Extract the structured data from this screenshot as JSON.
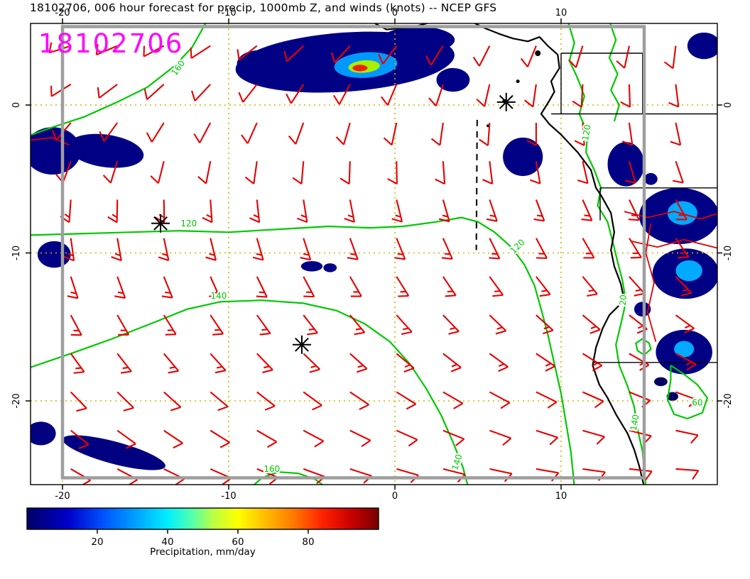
{
  "title": "18102706, 006 hour forecast for precip, 1000mb Z, and winds (knots) -- NCEP GFS",
  "overlay_label": {
    "text": "18102706",
    "color": "#ff00ff"
  },
  "map": {
    "lon_ticks": [
      -20,
      -10,
      0,
      10
    ],
    "lat_ticks": [
      0,
      -10,
      -20
    ],
    "grid_color": "#d4b400",
    "inner_frame": {
      "lon": [
        -20,
        15
      ],
      "lat": [
        5.3,
        -25.2
      ],
      "color": "#9e9e9e"
    },
    "extent": {
      "lon": [
        -21.9,
        19.4
      ],
      "lat": [
        5.6,
        -25.8
      ]
    }
  },
  "wind": {
    "color": "#e60000",
    "lon_start": -19.5,
    "lon_step": 2.8,
    "lat_start": 4.0,
    "lat_step": -2.6,
    "row_speeds": [
      10,
      10,
      10,
      10,
      15,
      15,
      15,
      15,
      15,
      10,
      10,
      10
    ],
    "rows": [
      [
        252,
        247,
        242,
        237,
        232,
        227,
        222,
        217,
        212,
        207,
        202,
        197,
        192,
        187
      ],
      [
        238,
        233,
        228,
        223,
        218,
        213,
        208,
        203,
        198,
        193,
        188,
        183,
        178,
        173
      ],
      [
        220,
        216,
        212,
        208,
        204,
        200,
        196,
        192,
        188,
        184,
        180,
        176,
        172,
        168
      ],
      [
        200,
        197,
        194,
        191,
        188,
        185,
        182,
        179,
        176,
        173,
        170,
        167,
        164,
        161
      ],
      [
        184,
        181,
        179,
        176,
        174,
        171,
        169,
        166,
        164,
        161,
        159,
        156,
        154,
        151
      ],
      [
        172,
        170,
        168,
        166,
        164,
        162,
        160,
        158,
        156,
        154,
        152,
        150,
        148,
        146
      ],
      [
        162,
        160,
        158,
        156,
        154,
        152,
        150,
        148,
        146,
        144,
        142,
        140,
        138,
        136
      ],
      [
        152,
        150,
        148,
        146,
        144,
        142,
        140,
        138,
        136,
        134,
        132,
        130,
        128,
        126
      ],
      [
        144,
        142,
        140,
        138,
        136,
        134,
        132,
        130,
        128,
        126,
        124,
        122,
        120,
        118
      ],
      [
        136,
        134,
        132,
        130,
        128,
        126,
        124,
        122,
        120,
        118,
        116,
        114,
        112,
        110
      ],
      [
        128,
        126,
        124,
        122,
        120,
        118,
        116,
        114,
        112,
        110,
        108,
        106,
        104,
        102
      ],
      [
        120,
        118,
        116,
        114,
        112,
        110,
        108,
        106,
        104,
        102,
        100,
        98,
        96,
        94
      ]
    ]
  },
  "contours": {
    "color": "#00c800",
    "lines": [
      {
        "points": [
          [
            -11.3,
            5.7
          ],
          [
            -12.2,
            3.9
          ],
          [
            -13.3,
            2.6
          ],
          [
            -14.9,
            1.2
          ],
          [
            -16.7,
            0.2
          ],
          [
            -18.7,
            -0.8
          ],
          [
            -20.6,
            -1.5
          ],
          [
            -22.1,
            -2.1
          ]
        ],
        "labels": [
          {
            "t": "160",
            "p": [
              -12.9,
              2.4
            ],
            "r": -55
          }
        ]
      },
      {
        "points": [
          [
            -22.1,
            -8.8
          ],
          [
            -19,
            -8.7
          ],
          [
            -16,
            -8.6
          ],
          [
            -13,
            -8.5
          ],
          [
            -10,
            -8.6
          ],
          [
            -7,
            -8.4
          ],
          [
            -4,
            -8.2
          ],
          [
            -1.5,
            -8.3
          ],
          [
            0.5,
            -8.2
          ],
          [
            2.5,
            -7.9
          ],
          [
            4,
            -7.6
          ],
          [
            5,
            -7.9
          ],
          [
            6,
            -8.6
          ],
          [
            7,
            -9.6
          ],
          [
            7.8,
            -10.8
          ],
          [
            8.4,
            -12.2
          ],
          [
            8.8,
            -13.8
          ],
          [
            9.2,
            -15.5
          ],
          [
            9.6,
            -17.5
          ],
          [
            10,
            -19.5
          ],
          [
            10.3,
            -21.5
          ],
          [
            10.6,
            -23.5
          ],
          [
            10.8,
            -25.8
          ]
        ],
        "labels": [
          {
            "t": "120",
            "p": [
              -12.4,
              -8.2
            ],
            "r": 0
          },
          {
            "t": "120",
            "p": [
              7.5,
              -9.7
            ],
            "r": -45
          }
        ]
      },
      {
        "points": [
          [
            -22.1,
            -17.8
          ],
          [
            -19.5,
            -16.8
          ],
          [
            -17,
            -15.8
          ],
          [
            -14.5,
            -14.7
          ],
          [
            -12.5,
            -13.8
          ],
          [
            -10.5,
            -13.3
          ],
          [
            -8,
            -13.2
          ],
          [
            -5.5,
            -13.4
          ],
          [
            -3.5,
            -13.9
          ],
          [
            -1.8,
            -14.8
          ],
          [
            -0.3,
            -16
          ],
          [
            0.9,
            -17.5
          ],
          [
            1.9,
            -19.2
          ],
          [
            2.8,
            -21
          ],
          [
            3.5,
            -22.8
          ],
          [
            4.1,
            -24.5
          ],
          [
            4.4,
            -25.8
          ]
        ],
        "labels": [
          {
            "t": "140",
            "p": [
              -10.6,
              -13.1
            ],
            "r": 0
          },
          {
            "t": "140",
            "p": [
              3.9,
              -24.2
            ],
            "r": -72
          }
        ]
      },
      {
        "points": [
          [
            -8.6,
            -25.8
          ],
          [
            -8,
            -25.2
          ],
          [
            -7,
            -24.8
          ],
          [
            -5.8,
            -24.9
          ],
          [
            -4.8,
            -25.3
          ],
          [
            -4.2,
            -25.8
          ]
        ],
        "labels": [
          {
            "t": "160",
            "p": [
              -7.4,
              -24.8
            ],
            "r": 0
          }
        ]
      },
      {
        "points": [
          [
            10.4,
            5.7
          ],
          [
            10.8,
            4.2
          ],
          [
            10.5,
            3
          ],
          [
            11,
            1.8
          ],
          [
            11.4,
            0.6
          ],
          [
            11.1,
            -0.6
          ],
          [
            11.6,
            -1.9
          ],
          [
            11.5,
            -3.2
          ],
          [
            12,
            -4.4
          ],
          [
            12.4,
            -5.6
          ],
          [
            12.2,
            -6.8
          ],
          [
            12.8,
            -7.9
          ],
          [
            13.1,
            -9.2
          ],
          [
            13.4,
            -10.6
          ],
          [
            13.7,
            -11.9
          ],
          [
            13.9,
            -13.3
          ],
          [
            13.6,
            -14.8
          ],
          [
            13.3,
            -16.2
          ],
          [
            13.5,
            -17.6
          ],
          [
            14,
            -19
          ],
          [
            14.4,
            -20.4
          ],
          [
            14.6,
            -21.9
          ],
          [
            14.9,
            -23.4
          ],
          [
            15.1,
            -25.8
          ]
        ],
        "labels": [
          {
            "t": "120",
            "p": [
              11.7,
              -1.9
            ],
            "r": -80
          },
          {
            "t": "20",
            "p": [
              13.9,
              -13.2
            ],
            "r": -85
          },
          {
            "t": "140",
            "p": [
              14.6,
              -21.5
            ],
            "r": -80
          }
        ]
      },
      {
        "points": [
          [
            12.9,
            5.7
          ],
          [
            13.3,
            4.4
          ],
          [
            12.9,
            3.2
          ],
          [
            13.4,
            2.1
          ],
          [
            13,
            1
          ],
          [
            13.5,
            0
          ],
          [
            13.2,
            -1.1
          ]
        ],
        "labels": []
      },
      {
        "points": [
          [
            16.6,
            -17.6
          ],
          [
            17.4,
            -18.2
          ],
          [
            18.2,
            -18.9
          ],
          [
            18.8,
            -19.8
          ],
          [
            18.5,
            -20.8
          ],
          [
            17.6,
            -21.2
          ],
          [
            16.8,
            -20.9
          ],
          [
            16.4,
            -19.9
          ],
          [
            16.6,
            -18.6
          ],
          [
            16.6,
            -17.6
          ]
        ],
        "labels": [
          {
            "t": "60",
            "p": [
              18.2,
              -20.3
            ],
            "r": 0
          }
        ]
      },
      {
        "points": [
          [
            14.9,
            -15.8
          ],
          [
            15.3,
            -16.1
          ],
          [
            15.4,
            -16.5
          ],
          [
            15,
            -16.9
          ],
          [
            14.6,
            -16.6
          ],
          [
            14.5,
            -16.1
          ],
          [
            14.9,
            -15.8
          ]
        ],
        "labels": []
      }
    ],
    "red_lines": [
      [
        [
          -22.1,
          -2.4
        ],
        [
          -20.6,
          -2.2
        ],
        [
          -19.6,
          -2.7
        ]
      ],
      [
        [
          13.8,
          -7.2
        ],
        [
          15.2,
          -7.6
        ],
        [
          16.8,
          -7.2
        ],
        [
          18.4,
          -7.7
        ],
        [
          19.5,
          -7.3
        ]
      ],
      [
        [
          14.2,
          -9.2
        ],
        [
          15.8,
          -9.6
        ],
        [
          17.4,
          -9.1
        ],
        [
          19.5,
          -9.7
        ]
      ],
      [
        [
          15.4,
          -8
        ],
        [
          15.1,
          -10
        ],
        [
          15.6,
          -12
        ],
        [
          15.2,
          -14
        ],
        [
          15.7,
          -16
        ]
      ]
    ]
  },
  "coast": {
    "paths": [
      [
        [
          -1.5,
          5.7
        ],
        [
          -0.5,
          5.1
        ],
        [
          1.2,
          5.3
        ],
        [
          2.5,
          5.7
        ]
      ],
      [
        [
          4.5,
          5.7
        ],
        [
          5.4,
          5.2
        ],
        [
          6.3,
          4.8
        ],
        [
          7.1,
          4.5
        ],
        [
          8,
          4.3
        ],
        [
          8.7,
          4.6
        ],
        [
          9.2,
          4
        ],
        [
          9.8,
          3.4
        ],
        [
          9.9,
          2.5
        ],
        [
          9.4,
          1.6
        ],
        [
          9.6,
          0.9
        ],
        [
          9.3,
          0.3
        ],
        [
          8.8,
          -0.6
        ],
        [
          9.3,
          -1.3
        ],
        [
          10,
          -2
        ],
        [
          11,
          -3.2
        ],
        [
          11.8,
          -4.4
        ],
        [
          12.1,
          -5.6
        ],
        [
          12.4,
          -6.1
        ],
        [
          13,
          -7.3
        ],
        [
          13.2,
          -8.6
        ],
        [
          13,
          -9.8
        ],
        [
          13.2,
          -10.9
        ],
        [
          13.6,
          -12.1
        ],
        [
          13.8,
          -13.2
        ],
        [
          12.9,
          -14.2
        ],
        [
          12.5,
          -15.1
        ],
        [
          12.1,
          -16.4
        ],
        [
          11.9,
          -17.6
        ],
        [
          12.3,
          -18.9
        ],
        [
          12.8,
          -19.8
        ],
        [
          13.3,
          -20.9
        ],
        [
          14,
          -22.2
        ],
        [
          14.4,
          -23.3
        ],
        [
          14.7,
          -24.4
        ],
        [
          15,
          -25.8
        ]
      ]
    ],
    "islands": [
      [
        8.6,
        3.5,
        4
      ],
      [
        7.4,
        1.6,
        2.5
      ],
      [
        6.6,
        0.25,
        3
      ],
      [
        5.6,
        -1.4,
        2
      ]
    ],
    "borders": [
      [
        [
          10,
          3.5
        ],
        [
          14.9,
          3.5
        ]
      ],
      [
        [
          14.9,
          3.5
        ],
        [
          14.9,
          -0.6
        ]
      ],
      [
        [
          10,
          3.5
        ],
        [
          10,
          -0.6
        ]
      ],
      [
        [
          9.4,
          -0.6
        ],
        [
          19.4,
          -0.6
        ]
      ],
      [
        [
          12.35,
          -5.6
        ],
        [
          19.4,
          -5.6
        ]
      ],
      [
        [
          12.35,
          -5.6
        ],
        [
          12.35,
          -7.8
        ]
      ],
      [
        [
          11.9,
          -17.4
        ],
        [
          19.4,
          -17.4
        ]
      ]
    ]
  },
  "precip_blobs": [
    [
      -3.0,
      2.9,
      6.6,
      2.0,
      -4,
      "#000085"
    ],
    [
      -8.2,
      2.8,
      1.3,
      0.9,
      0,
      "#000085"
    ],
    [
      1.4,
      4.4,
      2.2,
      0.9,
      0,
      "#000085"
    ],
    [
      3.5,
      1.7,
      1.0,
      0.8,
      0,
      "#000085"
    ],
    [
      18.6,
      4.0,
      1.0,
      0.9,
      0,
      "#000085"
    ],
    [
      -20.6,
      -3.1,
      1.7,
      1.6,
      0,
      "#000085"
    ],
    [
      -17.4,
      -3.1,
      2.3,
      1.1,
      8,
      "#000085"
    ],
    [
      -20.5,
      -10.1,
      1.0,
      0.9,
      0,
      "#000085"
    ],
    [
      -5.0,
      -10.9,
      0.65,
      0.35,
      0,
      "#000085"
    ],
    [
      -3.9,
      -11.0,
      0.4,
      0.3,
      0,
      "#000085"
    ],
    [
      7.7,
      -3.5,
      1.2,
      1.3,
      0,
      "#000085"
    ],
    [
      13.9,
      -4.0,
      1.1,
      1.5,
      0,
      "#000085"
    ],
    [
      17.1,
      -7.5,
      2.4,
      1.9,
      0,
      "#000085"
    ],
    [
      17.5,
      -11.4,
      2.0,
      1.7,
      0,
      "#000085"
    ],
    [
      17.4,
      -16.7,
      1.7,
      1.5,
      0,
      "#000085"
    ],
    [
      14.9,
      -13.8,
      0.5,
      0.5,
      0,
      "#000085"
    ],
    [
      15.4,
      -5.0,
      0.4,
      0.4,
      0,
      "#000085"
    ],
    [
      -16.9,
      -23.5,
      3.2,
      0.75,
      15,
      "#000080"
    ],
    [
      -21.3,
      -22.2,
      0.9,
      0.8,
      0,
      "#000080"
    ],
    [
      16.0,
      -18.7,
      0.4,
      0.3,
      0,
      "#000060"
    ],
    [
      16.7,
      -19.7,
      0.35,
      0.3,
      0,
      "#000060"
    ],
    [
      -1.75,
      2.7,
      1.9,
      0.86,
      -4,
      "#0099ff"
    ],
    [
      -1.85,
      2.6,
      0.95,
      0.42,
      -4,
      "#aaee00"
    ],
    [
      -2.1,
      2.5,
      0.45,
      0.22,
      0,
      "#ee2200"
    ],
    [
      17.3,
      -7.3,
      0.9,
      0.8,
      0,
      "#00aaff"
    ],
    [
      17.7,
      -11.2,
      0.8,
      0.7,
      0,
      "#00aaff"
    ],
    [
      17.4,
      -16.5,
      0.6,
      0.55,
      0,
      "#00aaff"
    ]
  ],
  "markers": [
    [
      -14.1,
      -8.0
    ],
    [
      -5.6,
      -16.2
    ],
    [
      6.7,
      0.2
    ]
  ],
  "dashed_line": {
    "from": [
      4.95,
      -1.0
    ],
    "to": [
      4.9,
      -9.8
    ]
  },
  "colorbar": {
    "label": "Precipitation, mm/day",
    "ticks": [
      20,
      40,
      60,
      80
    ],
    "min": 0,
    "max": 100,
    "stops": [
      [
        0,
        "#000066"
      ],
      [
        0.12,
        "#0000cc"
      ],
      [
        0.22,
        "#0055ff"
      ],
      [
        0.32,
        "#00aaff"
      ],
      [
        0.4,
        "#00eeff"
      ],
      [
        0.47,
        "#55ffaa"
      ],
      [
        0.53,
        "#bbff44"
      ],
      [
        0.6,
        "#ffff00"
      ],
      [
        0.68,
        "#ffbb00"
      ],
      [
        0.76,
        "#ff7700"
      ],
      [
        0.84,
        "#ff2200"
      ],
      [
        0.92,
        "#cc0000"
      ],
      [
        1,
        "#770000"
      ]
    ]
  }
}
